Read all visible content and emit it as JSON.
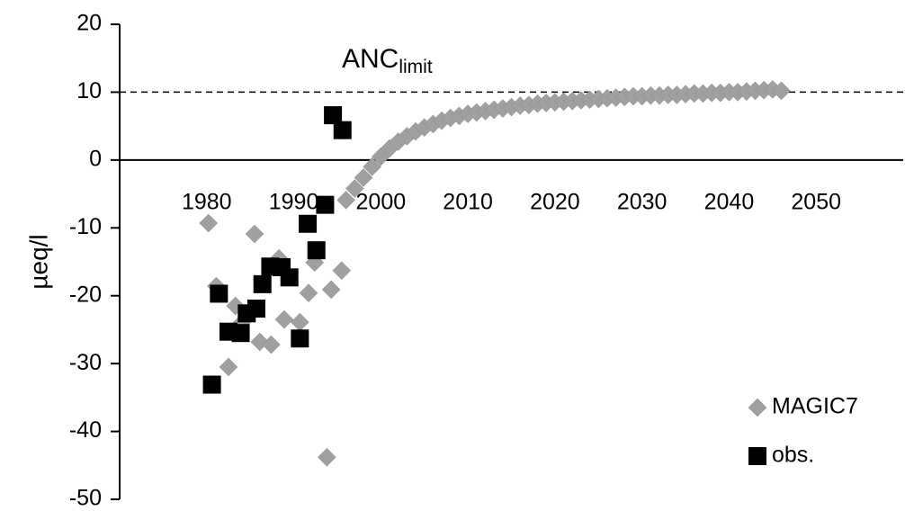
{
  "chart_data": {
    "type": "scatter",
    "y_label": "µeq/l",
    "annotation": {
      "text": "ANC",
      "subscript": "limit"
    },
    "reference_line": 10,
    "xlim": [
      1970,
      2060
    ],
    "ylim": [
      -50,
      20
    ],
    "xticks": [
      1980,
      1990,
      2000,
      2010,
      2020,
      2030,
      2040,
      2050
    ],
    "yticks": [
      -50,
      -40,
      -30,
      -20,
      -10,
      0,
      10,
      20
    ],
    "grid": false,
    "legend": "lower right",
    "series": [
      {
        "name": "MAGIC7",
        "color": "#a0a0a0",
        "marker": "diamond",
        "x": [
          1980.2,
          1981.1,
          1982.5,
          1983.3,
          1984.0,
          1985.5,
          1986.1,
          1987.4,
          1988.3,
          1988.9,
          1990.7,
          1991.7,
          1992.4,
          1993.8,
          1994.3,
          1995.5,
          1996,
          1997,
          1998,
          1999,
          2000,
          2001,
          2002,
          2003,
          2004,
          2005,
          2006,
          2007,
          2008,
          2009,
          2010,
          2011,
          2012,
          2013,
          2014,
          2015,
          2016,
          2017,
          2018,
          2019,
          2020,
          2021,
          2022,
          2023,
          2024,
          2025,
          2026,
          2027,
          2028,
          2029,
          2030,
          2031,
          2032,
          2033,
          2034,
          2035,
          2036,
          2037,
          2038,
          2039,
          2040,
          2041,
          2042,
          2043,
          2044,
          2045,
          2046
        ],
        "values": [
          -9.3,
          -18.6,
          -30.5,
          -21.5,
          -24.0,
          -10.9,
          -26.8,
          -27.2,
          -14.5,
          -23.5,
          -23.9,
          -19.6,
          -15.1,
          -43.8,
          -19.1,
          -16.3,
          -5.9,
          -4.2,
          -2.6,
          -1.0,
          0.5,
          1.7,
          2.7,
          3.5,
          4.2,
          4.8,
          5.3,
          5.8,
          6.2,
          6.5,
          6.8,
          7.0,
          7.2,
          7.4,
          7.6,
          7.8,
          8.0,
          8.1,
          8.3,
          8.4,
          8.5,
          8.6,
          8.7,
          8.8,
          8.9,
          9.0,
          9.1,
          9.2,
          9.3,
          9.4,
          9.4,
          9.5,
          9.5,
          9.6,
          9.6,
          9.7,
          9.8,
          9.8,
          9.9,
          9.9,
          10.0,
          10.0,
          10.1,
          10.2,
          10.3,
          10.4,
          10.2
        ]
      },
      {
        "name": "obs.",
        "color": "#000000",
        "marker": "square",
        "x": [
          1980.6,
          1981.4,
          1982.5,
          1983.9,
          1984.6,
          1985.7,
          1986.4,
          1987.3,
          1988.6,
          1989.5,
          1990.7,
          1991.6,
          1992.6,
          1993.6,
          1994.5,
          1995.6
        ],
        "values": [
          -33.1,
          -19.7,
          -25.3,
          -25.5,
          -22.6,
          -21.9,
          -18.3,
          -15.7,
          -15.8,
          -17.3,
          -26.3,
          -9.4,
          -13.3,
          -6.6,
          6.6,
          4.4
        ]
      }
    ]
  }
}
